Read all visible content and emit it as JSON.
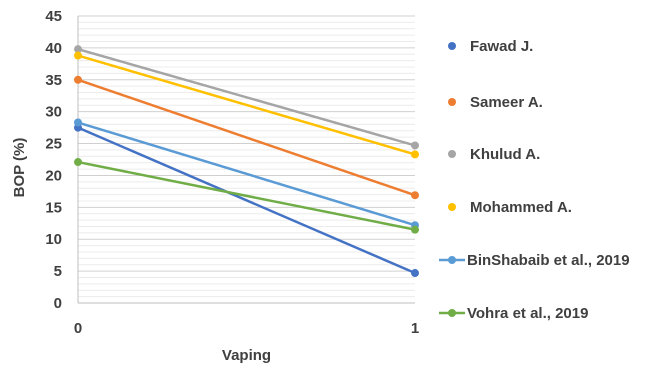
{
  "chart_data": {
    "type": "line",
    "title": "",
    "xlabel": "Vaping",
    "ylabel": "BOP (%)",
    "x": [
      0,
      1
    ],
    "x_tick_labels": [
      "0",
      "1"
    ],
    "ylim": [
      0,
      45
    ],
    "y_ticks": [
      0,
      5,
      10,
      15,
      20,
      25,
      30,
      35,
      40,
      45
    ],
    "grid": true,
    "legend_position": "right",
    "series": [
      {
        "name": "Fawad J.",
        "values": [
          27.5,
          4.7
        ],
        "color": "#4472C4",
        "legend_style": "marker"
      },
      {
        "name": "Sameer A.",
        "values": [
          35.0,
          16.9
        ],
        "color": "#ED7D31",
        "legend_style": "marker"
      },
      {
        "name": "Khulud A.",
        "values": [
          39.8,
          24.7
        ],
        "color": "#A5A5A5",
        "legend_style": "marker"
      },
      {
        "name": "Mohammed A.",
        "values": [
          38.8,
          23.3
        ],
        "color": "#FFC000",
        "legend_style": "marker"
      },
      {
        "name": "BinShabaib et al., 2019",
        "values": [
          28.3,
          12.2
        ],
        "color": "#5B9BD5",
        "legend_style": "line"
      },
      {
        "name": "Vohra et al., 2019",
        "values": [
          22.1,
          11.5
        ],
        "color": "#70AD47",
        "legend_style": "line"
      }
    ]
  }
}
